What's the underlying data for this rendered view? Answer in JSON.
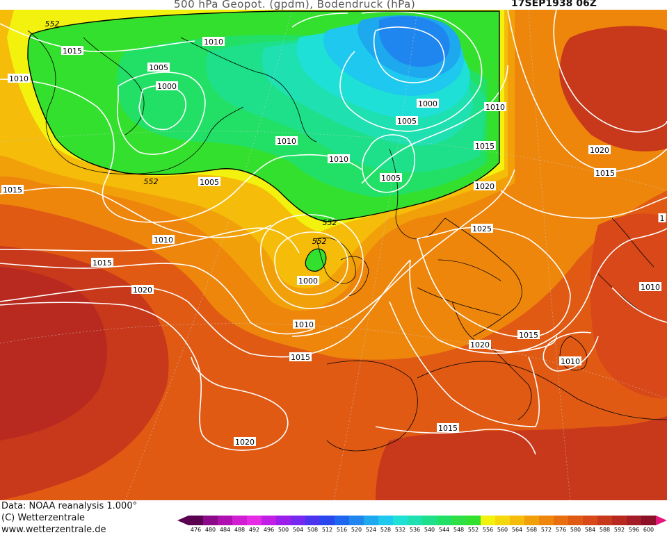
{
  "header": {
    "title": "500 hPa Geopot. (gpdm), Bodendruck (hPa)",
    "datetime": "17SEP1938 06Z"
  },
  "footer": {
    "data_source": "Data: NOAA reanalysis 1.000°",
    "copyright": "(C) Wetterzentrale",
    "website": "www.wetterzentrale.de"
  },
  "colorbar": {
    "unit": "gpdm",
    "levels": [
      "476",
      "480",
      "484",
      "488",
      "492",
      "496",
      "500",
      "504",
      "508",
      "512",
      "516",
      "520",
      "524",
      "528",
      "532",
      "536",
      "540",
      "544",
      "548",
      "552",
      "556",
      "560",
      "564",
      "568",
      "572",
      "576",
      "580",
      "584",
      "588",
      "592",
      "596",
      "600"
    ],
    "colors": [
      "#5a0050",
      "#8a0a8a",
      "#b00fb0",
      "#d21ed2",
      "#e62be6",
      "#c21fe6",
      "#9b1eeb",
      "#7428f0",
      "#4b34f0",
      "#2a46ee",
      "#1e66ee",
      "#1e86ee",
      "#1ea8ee",
      "#1ec8ee",
      "#1ee0d6",
      "#1ee0b0",
      "#1ee08a",
      "#22e066",
      "#2ee046",
      "#34e02e",
      "#f2f20e",
      "#f5d80c",
      "#f5bc0a",
      "#f2a00a",
      "#ee860c",
      "#e96e10",
      "#e05a14",
      "#d84818",
      "#c8381a",
      "#b82a20",
      "#a41c26",
      "#8c1028"
    ]
  },
  "isobars": [
    {
      "label": "1015",
      "unit": "hPa"
    },
    {
      "label": "1010",
      "unit": "hPa"
    },
    {
      "label": "1005",
      "unit": "hPa"
    },
    {
      "label": "1000",
      "unit": "hPa"
    },
    {
      "label": "1020",
      "unit": "hPa"
    },
    {
      "label": "1025",
      "unit": "hPa"
    }
  ],
  "geopotential_labels": [
    "552"
  ],
  "map_labels": [
    {
      "text": "552"
    },
    {
      "text": "1015"
    },
    {
      "text": "1010"
    },
    {
      "text": "1010"
    },
    {
      "text": "1005"
    },
    {
      "text": "1000"
    },
    {
      "text": "1010"
    },
    {
      "text": "1000"
    },
    {
      "text": "1005"
    },
    {
      "text": "1010"
    },
    {
      "text": "1015"
    },
    {
      "text": "1020"
    },
    {
      "text": "1010"
    },
    {
      "text": "1005"
    },
    {
      "text": "1020"
    },
    {
      "text": "1015"
    },
    {
      "text": "552"
    },
    {
      "text": "1005"
    },
    {
      "text": "1015"
    },
    {
      "text": "1010"
    },
    {
      "text": "552"
    },
    {
      "text": "552"
    },
    {
      "text": "1000"
    },
    {
      "text": "1025"
    },
    {
      "text": "1015"
    },
    {
      "text": "1020"
    },
    {
      "text": "1010"
    },
    {
      "text": "1010"
    },
    {
      "text": "1020"
    },
    {
      "text": "1015"
    },
    {
      "text": "1015"
    },
    {
      "text": "1010"
    },
    {
      "text": "1020"
    },
    {
      "text": "1015"
    },
    {
      "text": "1"
    }
  ]
}
